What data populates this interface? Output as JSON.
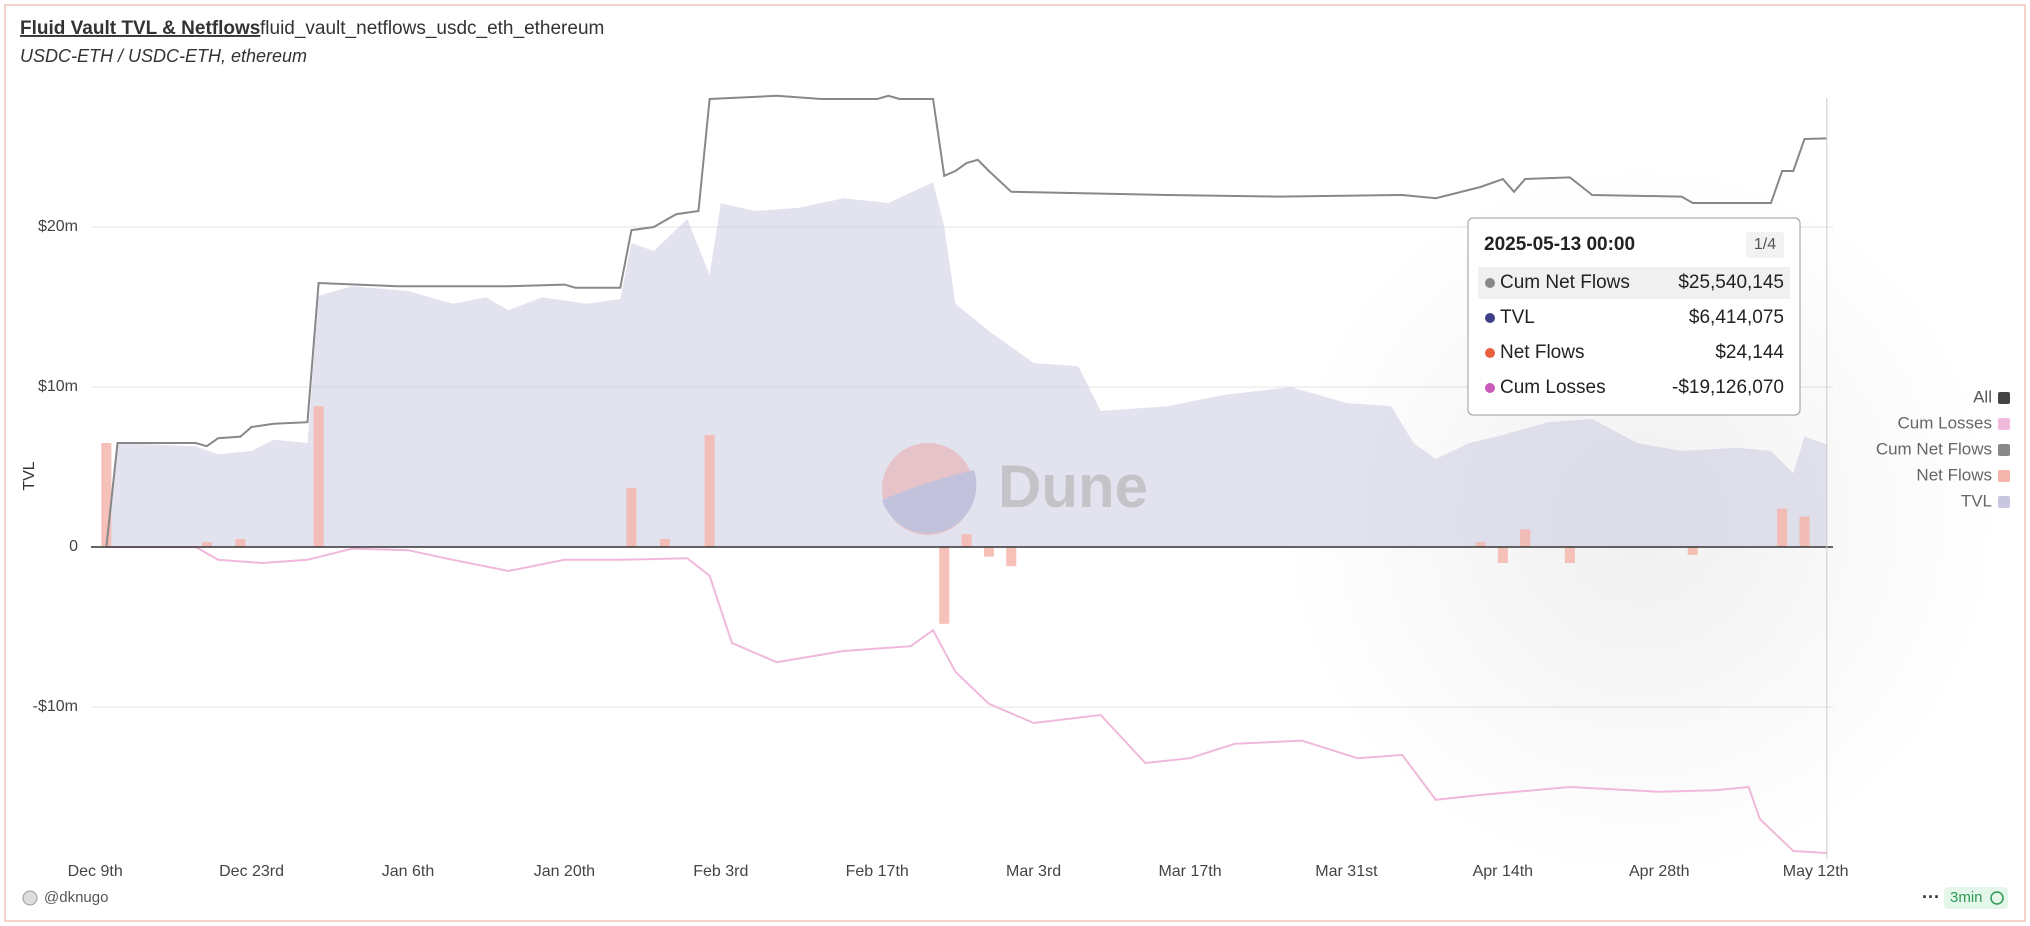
{
  "header": {
    "title": "Fluid Vault TVL & Netflows",
    "query": "fluid_vault_netflows_usdc_eth_ethereum",
    "subtitle": "USDC-ETH / USDC-ETH, ethereum"
  },
  "footer": {
    "author": "@dknugo",
    "refresh": "3min"
  },
  "watermark": "Dune",
  "chart_data": {
    "type": "combo",
    "y_label": "TVL",
    "legend_toggle": "All",
    "legend": "right",
    "grid": true,
    "xlim": [
      "2024-12-08",
      "2025-05-14"
    ],
    "xticks": [
      {
        "value": "2024-12-09",
        "label": "Dec 9th"
      },
      {
        "value": "2024-12-23",
        "label": "Dec 23rd"
      },
      {
        "value": "2025-01-06",
        "label": "Jan 6th"
      },
      {
        "value": "2025-01-20",
        "label": "Jan 20th"
      },
      {
        "value": "2025-02-03",
        "label": "Feb 3rd"
      },
      {
        "value": "2025-02-17",
        "label": "Feb 17th"
      },
      {
        "value": "2025-03-03",
        "label": "Mar 3rd"
      },
      {
        "value": "2025-03-17",
        "label": "Mar 17th"
      },
      {
        "value": "2025-03-31",
        "label": "Mar 31st"
      },
      {
        "value": "2025-04-14",
        "label": "Apr 14th"
      },
      {
        "value": "2025-04-28",
        "label": "Apr 28th"
      },
      {
        "value": "2025-05-12",
        "label": "May 12th"
      }
    ],
    "ylim": [
      -19500000,
      28500000
    ],
    "yticks": [
      {
        "value": -10000000,
        "label": "-$10m"
      },
      0,
      {
        "value": 10000000,
        "label": "$10m"
      },
      {
        "value": 20000000,
        "label": "$20m"
      }
    ],
    "series": [
      {
        "name": "Cum Losses",
        "type": "line",
        "color": "#f0b8da",
        "x": [
          "2024-12-10",
          "2024-12-18",
          "2024-12-20",
          "2024-12-24",
          "2024-12-28",
          "2025-01-01",
          "2025-01-06",
          "2025-01-10",
          "2025-01-15",
          "2025-01-20",
          "2025-01-25",
          "2025-01-31",
          "2025-02-02",
          "2025-02-04",
          "2025-02-08",
          "2025-02-14",
          "2025-02-20",
          "2025-02-22",
          "2025-02-24",
          "2025-02-27",
          "2025-03-03",
          "2025-03-09",
          "2025-03-13",
          "2025-03-17",
          "2025-03-21",
          "2025-03-27",
          "2025-04-01",
          "2025-04-05",
          "2025-04-08",
          "2025-04-12",
          "2025-04-20",
          "2025-04-28",
          "2025-05-03",
          "2025-05-06",
          "2025-05-07",
          "2025-05-10",
          "2025-05-13"
        ],
        "values": [
          0,
          0,
          -800000,
          -1000000,
          -800000,
          -100000,
          -200000,
          -800000,
          -1500000,
          -800000,
          -800000,
          -700000,
          -1800000,
          -6000000,
          -7200000,
          -6500000,
          -6200000,
          -5200000,
          -7800000,
          -9800000,
          -11000000,
          -10500000,
          -13500000,
          -13200000,
          -12300000,
          -12100000,
          -13200000,
          -13000000,
          -15800000,
          -15500000,
          -15000000,
          -15300000,
          -15200000,
          -15000000,
          -17000000,
          -19000000,
          -19126070
        ]
      },
      {
        "name": "Cum Net Flows",
        "type": "line",
        "color": "#888888",
        "x": [
          "2024-12-10",
          "2024-12-11",
          "2024-12-18",
          "2024-12-19",
          "2024-12-20",
          "2024-12-22",
          "2024-12-23",
          "2024-12-25",
          "2024-12-28",
          "2024-12-29",
          "2025-01-05",
          "2025-01-15",
          "2025-01-20",
          "2025-01-21",
          "2025-01-25",
          "2025-01-26",
          "2025-01-28",
          "2025-01-30",
          "2025-02-01",
          "2025-02-02",
          "2025-02-08",
          "2025-02-12",
          "2025-02-17",
          "2025-02-18",
          "2025-02-19",
          "2025-02-22",
          "2025-02-23",
          "2025-02-24",
          "2025-02-25",
          "2025-02-26",
          "2025-02-27",
          "2025-03-01",
          "2025-03-08",
          "2025-03-15",
          "2025-03-25",
          "2025-04-05",
          "2025-04-08",
          "2025-04-12",
          "2025-04-14",
          "2025-04-15",
          "2025-04-16",
          "2025-04-20",
          "2025-04-22",
          "2025-04-30",
          "2025-05-01",
          "2025-05-08",
          "2025-05-09",
          "2025-05-10",
          "2025-05-11",
          "2025-05-13"
        ],
        "values": [
          0,
          6500000,
          6500000,
          6300000,
          6800000,
          6900000,
          7500000,
          7700000,
          7800000,
          16500000,
          16300000,
          16300000,
          16400000,
          16200000,
          16200000,
          19800000,
          20000000,
          20800000,
          21000000,
          28000000,
          28200000,
          28000000,
          28000000,
          28200000,
          28000000,
          28000000,
          23200000,
          23500000,
          24000000,
          24200000,
          23500000,
          22200000,
          22100000,
          22000000,
          21900000,
          22000000,
          21800000,
          22500000,
          23000000,
          22200000,
          23000000,
          23100000,
          22000000,
          21900000,
          21500000,
          21500000,
          23500000,
          23500000,
          25500000,
          25540145
        ]
      },
      {
        "name": "Net Flows",
        "type": "bar",
        "color": "#f4b6ab",
        "x": [
          "2024-12-10",
          "2024-12-19",
          "2024-12-22",
          "2024-12-29",
          "2025-01-26",
          "2025-01-29",
          "2025-02-02",
          "2025-02-23",
          "2025-02-25",
          "2025-02-27",
          "2025-03-01",
          "2025-04-12",
          "2025-04-14",
          "2025-04-16",
          "2025-04-20",
          "2025-05-01",
          "2025-05-09",
          "2025-05-11",
          "2025-05-13"
        ],
        "values": [
          6500000,
          300000,
          500000,
          8800000,
          3700000,
          500000,
          7000000,
          -4800000,
          800000,
          -600000,
          -1200000,
          300000,
          -1000000,
          1100000,
          -1000000,
          -500000,
          2400000,
          1900000,
          24144
        ]
      },
      {
        "name": "TVL",
        "type": "area",
        "color": "#c8c7df",
        "x": [
          "2024-12-10",
          "2024-12-11",
          "2024-12-18",
          "2024-12-20",
          "2024-12-23",
          "2024-12-25",
          "2024-12-28",
          "2024-12-29",
          "2025-01-01",
          "2025-01-06",
          "2025-01-10",
          "2025-01-13",
          "2025-01-15",
          "2025-01-18",
          "2025-01-22",
          "2025-01-25",
          "2025-01-26",
          "2025-01-28",
          "2025-01-31",
          "2025-02-02",
          "2025-02-03",
          "2025-02-06",
          "2025-02-10",
          "2025-02-14",
          "2025-02-18",
          "2025-02-22",
          "2025-02-23",
          "2025-02-24",
          "2025-02-27",
          "2025-03-01",
          "2025-03-03",
          "2025-03-07",
          "2025-03-09",
          "2025-03-15",
          "2025-03-20",
          "2025-03-26",
          "2025-03-31",
          "2025-04-04",
          "2025-04-06",
          "2025-04-08",
          "2025-04-11",
          "2025-04-14",
          "2025-04-18",
          "2025-04-22",
          "2025-04-26",
          "2025-04-30",
          "2025-05-05",
          "2025-05-08",
          "2025-05-10",
          "2025-05-11",
          "2025-05-13"
        ],
        "values": [
          0,
          6500000,
          6300000,
          5800000,
          6000000,
          6700000,
          6500000,
          15700000,
          16300000,
          16000000,
          15200000,
          15600000,
          14800000,
          15600000,
          15200000,
          15500000,
          19000000,
          18500000,
          20500000,
          17000000,
          21500000,
          21000000,
          21200000,
          21800000,
          21500000,
          22800000,
          20000000,
          15200000,
          13500000,
          12500000,
          11500000,
          11300000,
          8500000,
          8800000,
          9500000,
          10000000,
          9000000,
          8800000,
          6500000,
          5500000,
          6500000,
          7000000,
          7800000,
          8000000,
          6500000,
          6000000,
          6200000,
          6000000,
          4600000,
          6900000,
          6414075
        ]
      }
    ],
    "tooltip": {
      "x": "2025-05-13",
      "date": "2025-05-13 00:00",
      "page": "1/4",
      "rows": [
        {
          "name": "Cum Net Flows",
          "value": "$25,540,145",
          "color": "#888888"
        },
        {
          "name": "TVL",
          "value": "$6,414,075",
          "color": "#3f3f86"
        },
        {
          "name": "Net Flows",
          "value": "$24,144",
          "color": "#e8603c"
        },
        {
          "name": "Cum Losses",
          "value": "-$19,126,070",
          "color": "#c95bb8"
        }
      ]
    }
  }
}
